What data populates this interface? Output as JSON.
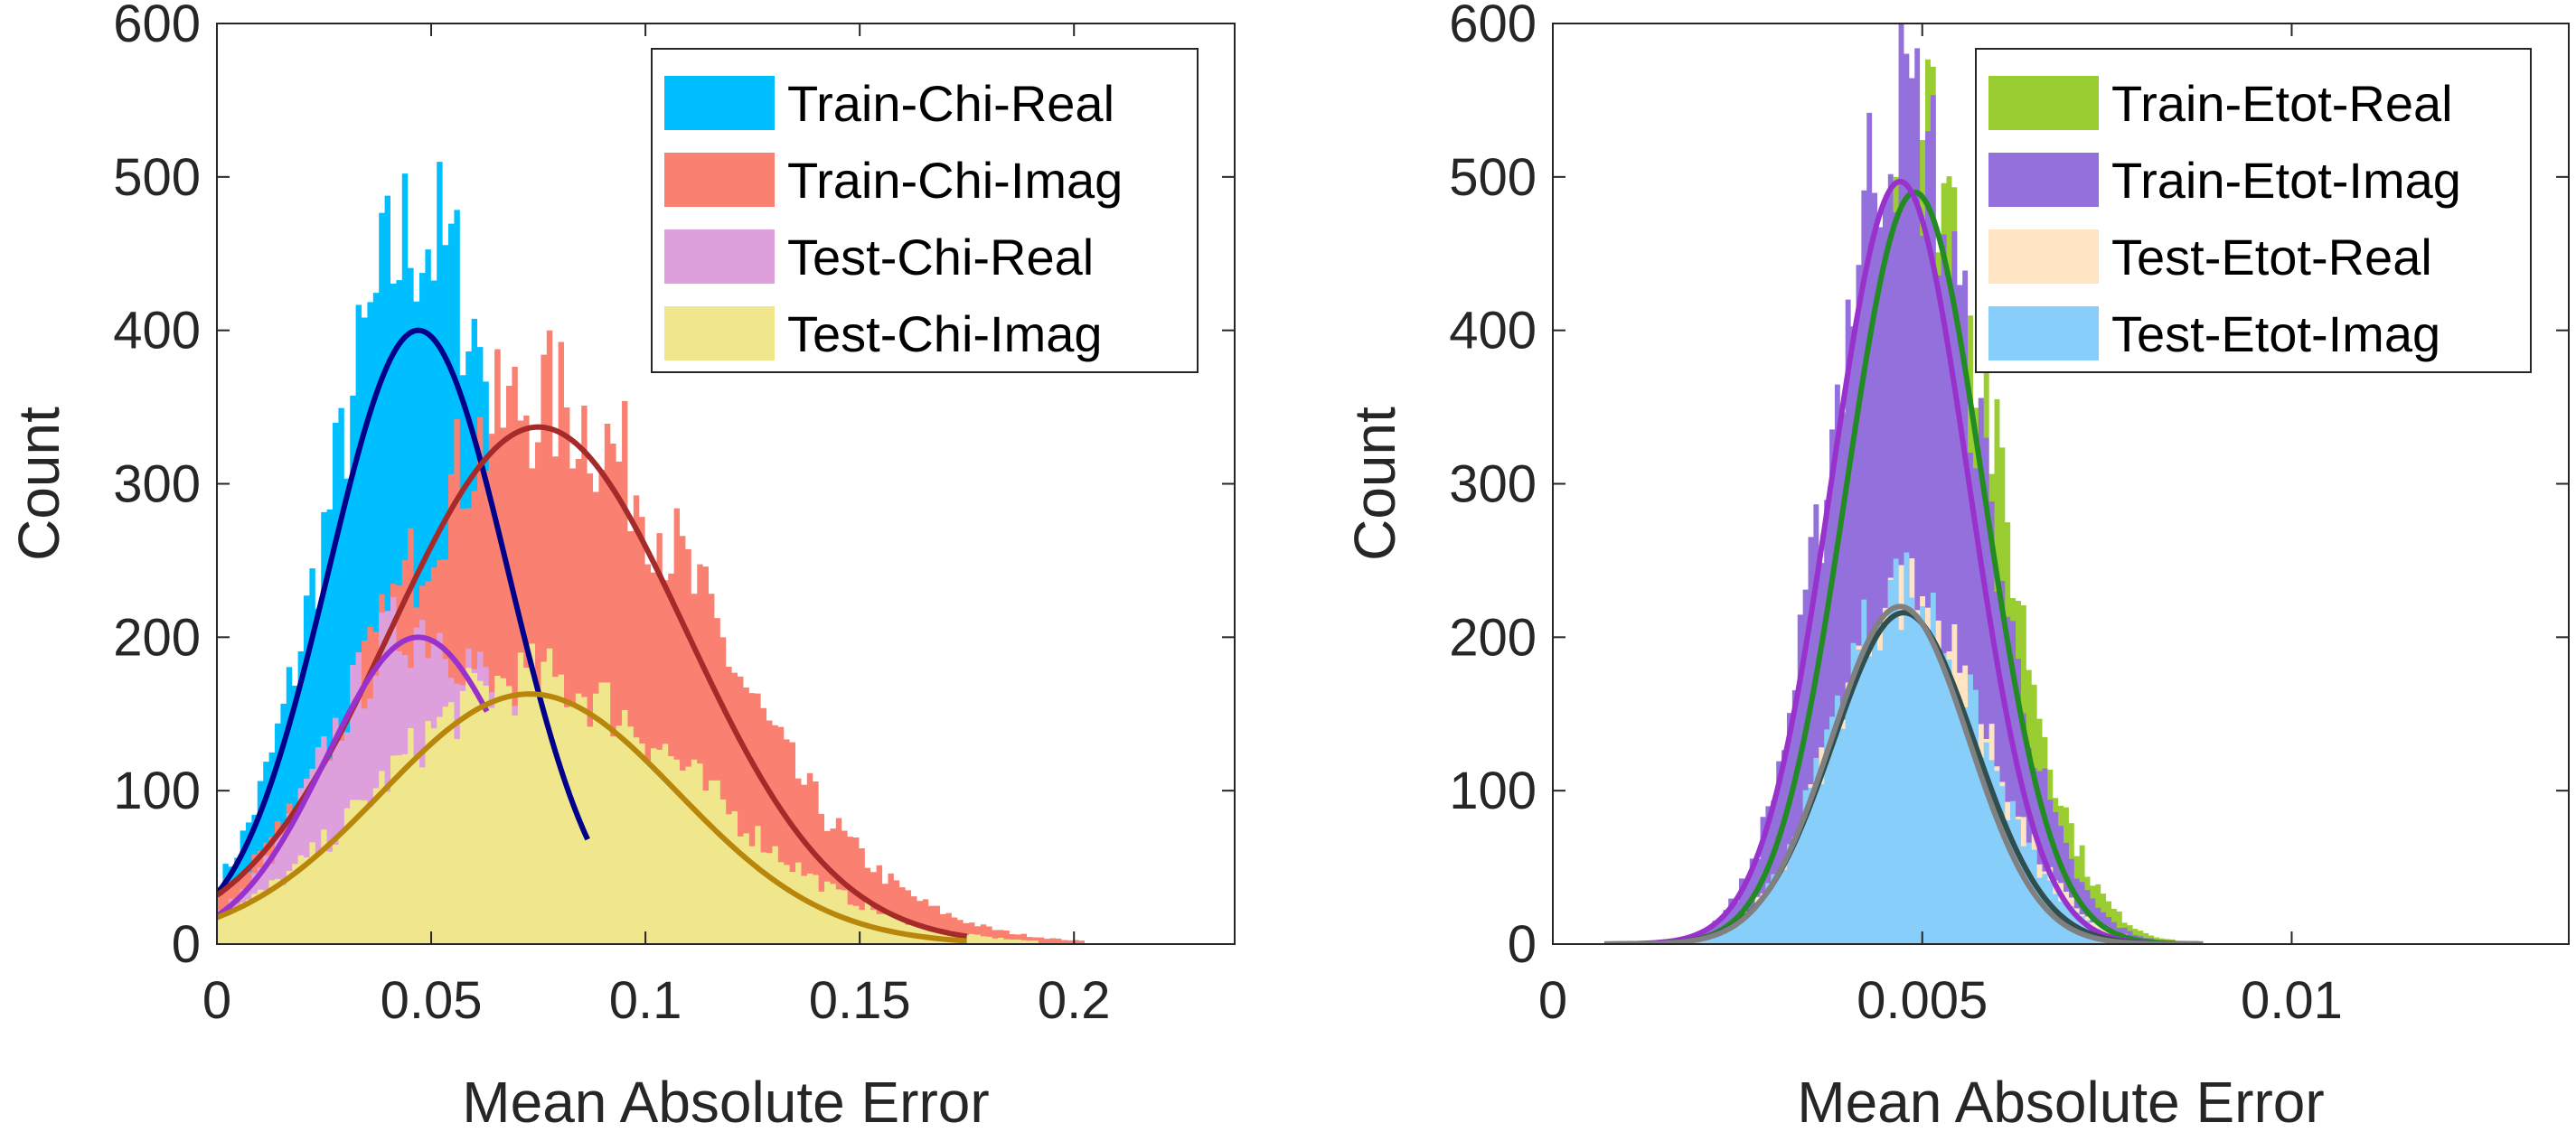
{
  "chart_data": [
    {
      "type": "histogram",
      "xlabel": "Mean Absolute Error",
      "ylabel": "Count",
      "xlim": [
        0,
        0.2375
      ],
      "ylim": [
        0,
        600
      ],
      "xticks": [
        0,
        0.05,
        0.1,
        0.15,
        0.2
      ],
      "xtick_labels": [
        "0",
        "0.05",
        "0.1",
        "0.15",
        "0.2"
      ],
      "yticks": [
        0,
        100,
        200,
        300,
        400,
        500,
        600
      ],
      "ytick_labels": [
        "0",
        "100",
        "200",
        "300",
        "400",
        "500",
        "600"
      ],
      "legend_position": "top-right",
      "bin_width": 0.00135,
      "series": [
        {
          "name": "Train-Chi-Real",
          "color": "#00BFFF",
          "fit_color": "#00008B",
          "fit": {
            "peak": 400,
            "mean": 0.047,
            "sigma": 0.021,
            "x_start": 0.0,
            "x_end": 0.0865
          }
        },
        {
          "name": "Train-Chi-Imag",
          "color": "#FA8072",
          "fit_color": "#A52A2A",
          "fit": {
            "peak": 337,
            "mean": 0.075,
            "sigma": 0.0345,
            "x_start": 0.0,
            "x_end": 0.175
          }
        },
        {
          "name": "Test-Chi-Real",
          "color": "#DDA0DD",
          "fit_color": "#9932CC",
          "fit": {
            "peak": 200,
            "mean": 0.047,
            "sigma": 0.0215,
            "x_start": 0.0,
            "x_end": 0.063
          }
        },
        {
          "name": "Test-Chi-Imag",
          "color": "#F0E68C",
          "fit_color": "#B8860B",
          "fit": {
            "peak": 163,
            "mean": 0.073,
            "sigma": 0.0345,
            "x_start": 0.0,
            "x_end": 0.175
          }
        }
      ]
    },
    {
      "type": "histogram",
      "xlabel": "Mean Absolute Error",
      "ylabel": "Count",
      "xlim": [
        0,
        0.01375
      ],
      "ylim": [
        0,
        600
      ],
      "xticks": [
        0,
        0.005,
        0.01
      ],
      "xtick_labels": [
        "0",
        "0.005",
        "0.01"
      ],
      "yticks": [
        0,
        100,
        200,
        300,
        400,
        500,
        600
      ],
      "ytick_labels": [
        "0",
        "100",
        "200",
        "300",
        "400",
        "500",
        "600"
      ],
      "legend_position": "top-right",
      "bin_width": 7.2e-05,
      "series": [
        {
          "name": "Train-Etot-Real",
          "color": "#9ACD32",
          "fit_color": "#228B22",
          "fit": {
            "peak": 490,
            "mean": 0.0049,
            "sigma": 0.00093,
            "x_start": 0.0007,
            "x_end": 0.0088
          }
        },
        {
          "name": "Train-Etot-Imag",
          "color": "#9370DB",
          "fit_color": "#9932CC",
          "fit": {
            "peak": 497,
            "mean": 0.0047,
            "sigma": 0.00093,
            "x_start": 0.0007,
            "x_end": 0.0088
          }
        },
        {
          "name": "Test-Etot-Real",
          "color": "#FFE4C4",
          "fit_color": "#2F4F4F",
          "fit": {
            "peak": 216,
            "mean": 0.00475,
            "sigma": 0.00096,
            "x_start": 0.0007,
            "x_end": 0.0088
          }
        },
        {
          "name": "Test-Etot-Imag",
          "color": "#87CEFA",
          "fit_color": "#808080",
          "fit": {
            "peak": 220,
            "mean": 0.0047,
            "sigma": 0.00093,
            "x_start": 0.0007,
            "x_end": 0.0088
          }
        }
      ]
    }
  ]
}
